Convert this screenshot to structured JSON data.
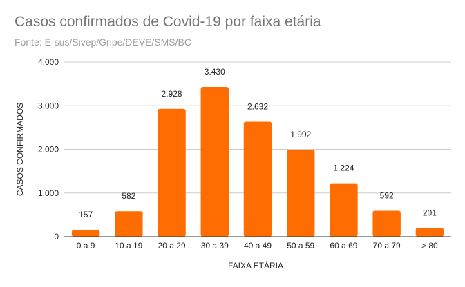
{
  "colors": {
    "bar": "#ff6d01",
    "grid": "#cccccc",
    "baseline": "#333333"
  },
  "chart_data": {
    "type": "bar",
    "title": "Casos confirmados de Covid-19 por faixa etária",
    "subtitle": "Fonte: E-sus/Sivep/Gripe/DEVE/SMS/BC",
    "xlabel": "FAIXA ETÁRIA",
    "ylabel": "CASOS CONFIRMADOS",
    "categories": [
      "0 a 9",
      "10 a 19",
      "20 a 29",
      "30 a 39",
      "40 a 49",
      "50 a 59",
      "60 a 69",
      "70 a 79",
      "> 80"
    ],
    "values": [
      157,
      582,
      2928,
      3430,
      2632,
      1992,
      1224,
      592,
      201
    ],
    "data_labels": [
      "157",
      "582",
      "2.928",
      "3.430",
      "2.632",
      "1.992",
      "1.224",
      "592",
      "201"
    ],
    "ylim": [
      0,
      4000
    ],
    "yticks": [
      0,
      1000,
      2000,
      3000,
      4000
    ],
    "ytick_labels": [
      "0",
      "1.000",
      "2.000",
      "3.000",
      "4.000"
    ],
    "grid": true,
    "legend": "none"
  }
}
